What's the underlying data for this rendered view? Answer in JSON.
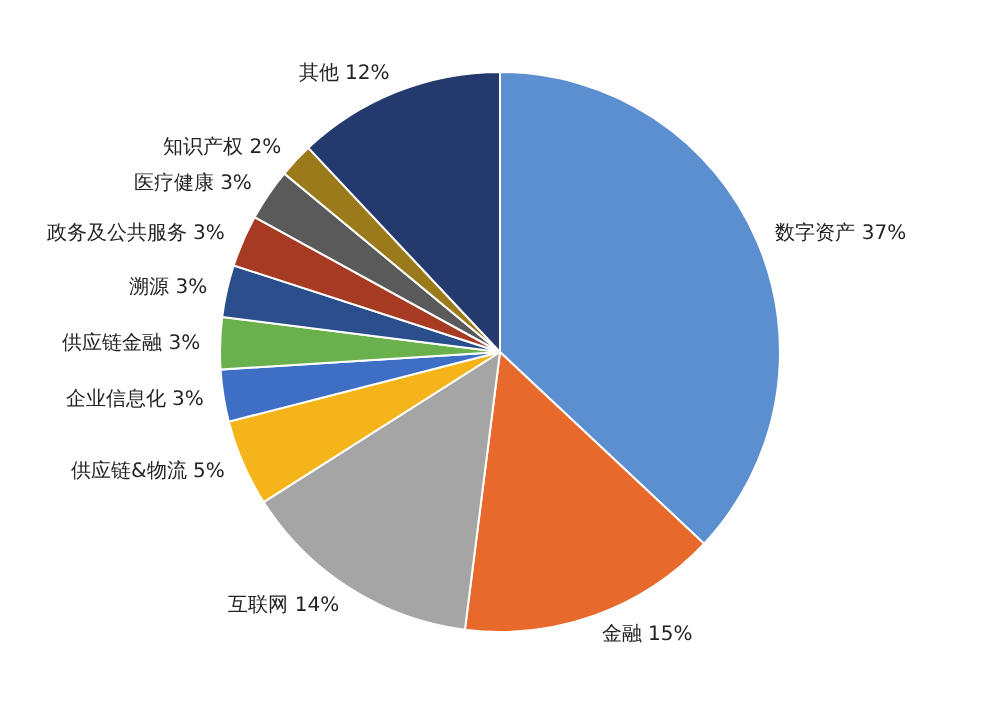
{
  "chart_data": {
    "type": "pie",
    "categories": [
      "数字资产",
      "金融",
      "互联网",
      "供应链&物流",
      "企业信息化",
      "供应链金融",
      "溯源",
      "政务及公共服务",
      "医疗健康",
      "知识产权",
      "其他"
    ],
    "values": [
      37,
      15,
      14,
      5,
      3,
      3,
      3,
      3,
      3,
      2,
      12
    ],
    "value_labels": [
      "37%",
      "15%",
      "14%",
      "5%",
      "3%",
      "3%",
      "3%",
      "3%",
      "3%",
      "2%",
      "12%"
    ],
    "colors": [
      "#5b8fd0",
      "#e8692c",
      "#a5a5a5",
      "#f5b41a",
      "#3f6fc4",
      "#6ab04c",
      "#2a4f8c",
      "#a63a23",
      "#5a5a5a",
      "#9a7a1a",
      "#243a6e"
    ],
    "legend": false
  }
}
